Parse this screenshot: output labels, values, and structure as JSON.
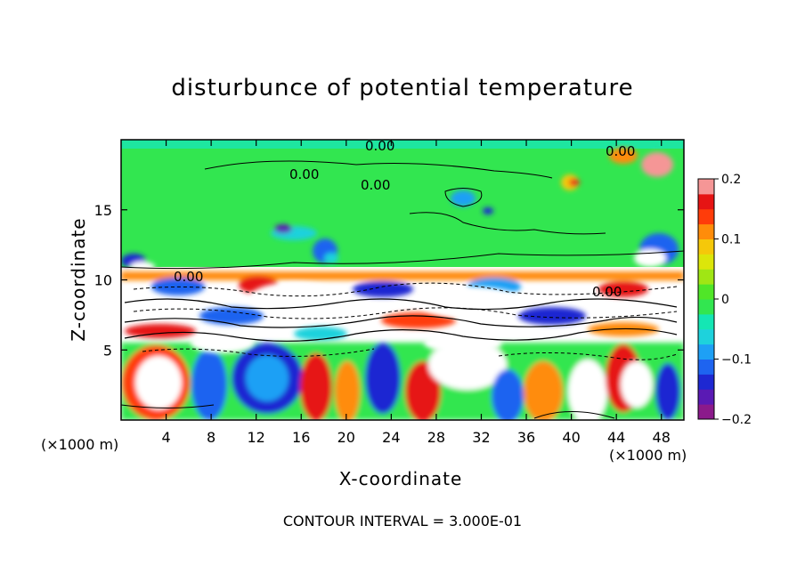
{
  "chart_data": {
    "type": "heatmap",
    "title": "disturbunce of potential temperature",
    "xlabel": "X-coordinate",
    "ylabel": "Z-coordinate",
    "x_unit": "(×1000 m)",
    "z_unit": "(×1000 m)",
    "xlim": [
      0,
      50
    ],
    "ylim": [
      0,
      20
    ],
    "x_ticks": [
      4,
      8,
      12,
      16,
      20,
      24,
      28,
      32,
      36,
      40,
      44,
      48
    ],
    "y_ticks": [
      5,
      10,
      15
    ],
    "colorbar": {
      "range": [
        -0.2,
        0.2
      ],
      "tick_labels": [
        "0.2",
        "0.1",
        "0",
        "−0.1",
        "−0.2"
      ],
      "tick_values": [
        0.2,
        0.1,
        0,
        -0.1,
        -0.2
      ],
      "colors": [
        "#8b1a8b",
        "#5a1ab4",
        "#1e28d2",
        "#1e64f0",
        "#1ea0f5",
        "#1ed2dc",
        "#14e6b4",
        "#32e650",
        "#50e628",
        "#a0e614",
        "#dce60a",
        "#f5c80a",
        "#ff8c0a",
        "#ff3c0a",
        "#e61414",
        "#f59696"
      ]
    },
    "contour_labels": [
      "0.00",
      "0.00",
      "0.00",
      "0.00",
      "0.00",
      "0.00"
    ],
    "annotation": "CONTOUR INTERVAL = 3.000E-01"
  }
}
